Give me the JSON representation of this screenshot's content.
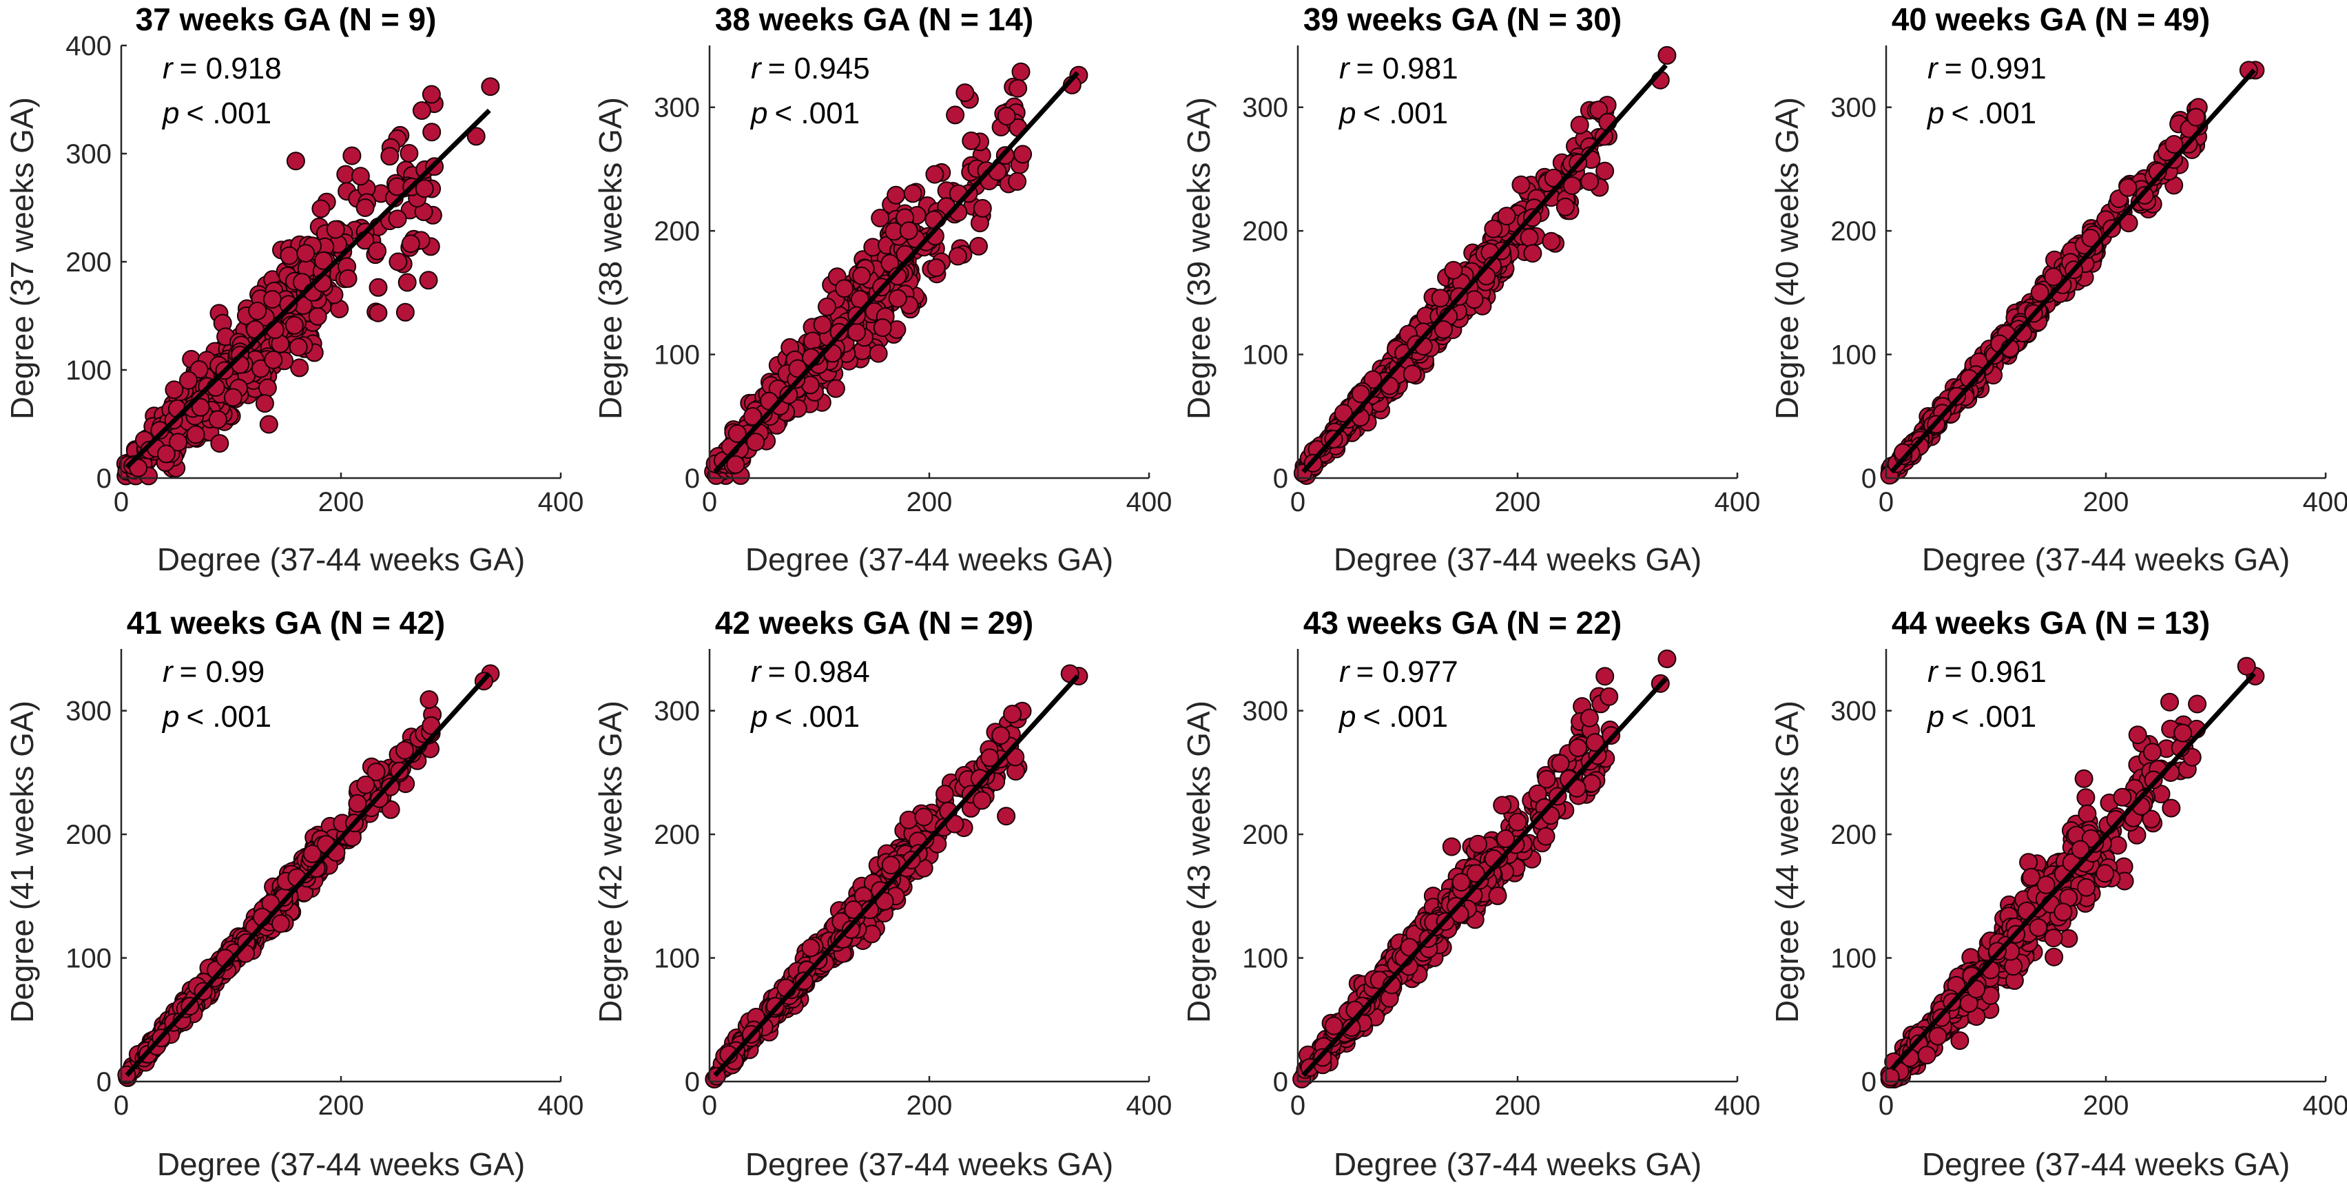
{
  "chart_data": [
    {
      "type": "scatter",
      "title": "37 weeks GA (N = 9)",
      "xlabel": "Degree (37-44 weeks GA)",
      "ylabel": "Degree (37 weeks GA)",
      "xlim": [
        0,
        400
      ],
      "ylim": [
        0,
        400
      ],
      "xticks": [
        0,
        200,
        400
      ],
      "yticks": [
        0,
        100,
        200,
        300,
        400
      ],
      "r_label": "r",
      "r_value": "= 0.918",
      "p_label": "p",
      "p_value": "< .001",
      "r": 0.918,
      "fit": {
        "x": [
          5,
          335
        ],
        "y": [
          10,
          340
        ]
      },
      "spread": 22,
      "anchors": [
        [
          336,
          362
        ],
        [
          323,
          316
        ],
        [
          285,
          288
        ],
        [
          210,
          298
        ],
        [
          222,
          250
        ],
        [
          252,
          200
        ],
        [
          233,
          210
        ]
      ]
    },
    {
      "type": "scatter",
      "title": "38 weeks GA (N = 14)",
      "xlabel": "Degree (37-44 weeks GA)",
      "ylabel": "Degree (38 weeks GA)",
      "xlim": [
        0,
        400
      ],
      "ylim": [
        0,
        350
      ],
      "xticks": [
        0,
        200,
        400
      ],
      "yticks": [
        0,
        100,
        200,
        300
      ],
      "r_label": "r",
      "r_value": "= 0.945",
      "p_label": "p",
      "p_value": "< .001",
      "r": 0.945,
      "fit": {
        "x": [
          5,
          335
        ],
        "y": [
          5,
          328
        ]
      },
      "spread": 17,
      "anchors": [
        [
          336,
          326
        ],
        [
          330,
          318
        ],
        [
          285,
          262
        ],
        [
          280,
          240
        ],
        [
          262,
          248
        ]
      ]
    },
    {
      "type": "scatter",
      "title": "39 weeks GA (N = 30)",
      "xlabel": "Degree (37-44 weeks GA)",
      "ylabel": "Degree (39 weeks GA)",
      "xlim": [
        0,
        400
      ],
      "ylim": [
        0,
        350
      ],
      "xticks": [
        0,
        200,
        400
      ],
      "yticks": [
        0,
        100,
        200,
        300
      ],
      "r_label": "r",
      "r_value": "= 0.981",
      "p_label": "p",
      "p_value": "< .001",
      "r": 0.981,
      "fit": {
        "x": [
          5,
          335
        ],
        "y": [
          5,
          334
        ]
      },
      "spread": 9,
      "anchors": [
        [
          336,
          342
        ],
        [
          330,
          322
        ],
        [
          282,
          288
        ],
        [
          255,
          255
        ],
        [
          190,
          212
        ]
      ]
    },
    {
      "type": "scatter",
      "title": "40 weeks GA (N = 49)",
      "xlabel": "Degree (37-44 weeks GA)",
      "ylabel": "Degree (40 weeks GA)",
      "xlim": [
        0,
        400
      ],
      "ylim": [
        0,
        350
      ],
      "xticks": [
        0,
        200,
        400
      ],
      "yticks": [
        0,
        100,
        200,
        300
      ],
      "r_label": "r",
      "r_value": "= 0.991",
      "p_label": "p",
      "p_value": "< .001",
      "r": 0.991,
      "fit": {
        "x": [
          5,
          335
        ],
        "y": [
          5,
          330
        ]
      },
      "spread": 6,
      "anchors": [
        [
          336,
          330
        ],
        [
          330,
          330
        ],
        [
          282,
          292
        ],
        [
          262,
          270
        ],
        [
          220,
          235
        ]
      ]
    },
    {
      "type": "scatter",
      "title": "41 weeks GA (N = 42)",
      "xlabel": "Degree (37-44 weeks GA)",
      "ylabel": "Degree (41 weeks GA)",
      "xlim": [
        0,
        400
      ],
      "ylim": [
        0,
        350
      ],
      "xticks": [
        0,
        200,
        400
      ],
      "yticks": [
        0,
        100,
        200,
        300
      ],
      "r_label": "r",
      "r_value": "= 0.99",
      "p_label": "p",
      "p_value": "< .001",
      "r": 0.99,
      "fit": {
        "x": [
          5,
          335
        ],
        "y": [
          5,
          330
        ]
      },
      "spread": 6,
      "anchors": [
        [
          336,
          330
        ],
        [
          330,
          324
        ],
        [
          282,
          288
        ],
        [
          258,
          268
        ],
        [
          215,
          225
        ]
      ]
    },
    {
      "type": "scatter",
      "title": "42 weeks GA (N = 29)",
      "xlabel": "Degree (37-44 weeks GA)",
      "ylabel": "Degree (42 weeks GA)",
      "xlim": [
        0,
        400
      ],
      "ylim": [
        0,
        350
      ],
      "xticks": [
        0,
        200,
        400
      ],
      "yticks": [
        0,
        100,
        200,
        300
      ],
      "r_label": "r",
      "r_value": "= 0.984",
      "p_label": "p",
      "p_value": "< .001",
      "r": 0.984,
      "fit": {
        "x": [
          5,
          335
        ],
        "y": [
          5,
          328
        ]
      },
      "spread": 8,
      "anchors": [
        [
          336,
          328
        ],
        [
          328,
          330
        ],
        [
          265,
          280
        ],
        [
          255,
          262
        ],
        [
          195,
          214
        ]
      ]
    },
    {
      "type": "scatter",
      "title": "43 weeks GA (N = 22)",
      "xlabel": "Degree (37-44 weeks GA)",
      "ylabel": "Degree (43 weeks GA)",
      "xlim": [
        0,
        400
      ],
      "ylim": [
        0,
        350
      ],
      "xticks": [
        0,
        200,
        400
      ],
      "yticks": [
        0,
        100,
        200,
        300
      ],
      "r_label": "r",
      "r_value": "= 0.977",
      "p_label": "p",
      "p_value": "< .001",
      "r": 0.977,
      "fit": {
        "x": [
          5,
          335
        ],
        "y": [
          5,
          326
        ]
      },
      "spread": 10,
      "anchors": [
        [
          336,
          342
        ],
        [
          330,
          322
        ],
        [
          285,
          280
        ],
        [
          255,
          270
        ],
        [
          140,
          190
        ],
        [
          200,
          210
        ]
      ]
    },
    {
      "type": "scatter",
      "title": "44 weeks GA (N = 13)",
      "xlabel": "Degree (37-44 weeks GA)",
      "ylabel": "Degree (44 weeks GA)",
      "xlim": [
        0,
        400
      ],
      "ylim": [
        0,
        350
      ],
      "xticks": [
        0,
        200,
        400
      ],
      "yticks": [
        0,
        100,
        200,
        300
      ],
      "r_label": "r",
      "r_value": "= 0.961",
      "p_label": "p",
      "p_value": "< .001",
      "r": 0.961,
      "fit": {
        "x": [
          5,
          335
        ],
        "y": [
          10,
          330
        ]
      },
      "spread": 14,
      "anchors": [
        [
          336,
          328
        ],
        [
          328,
          336
        ],
        [
          258,
          307
        ],
        [
          180,
          245
        ],
        [
          215,
          230
        ],
        [
          270,
          282
        ]
      ]
    }
  ]
}
